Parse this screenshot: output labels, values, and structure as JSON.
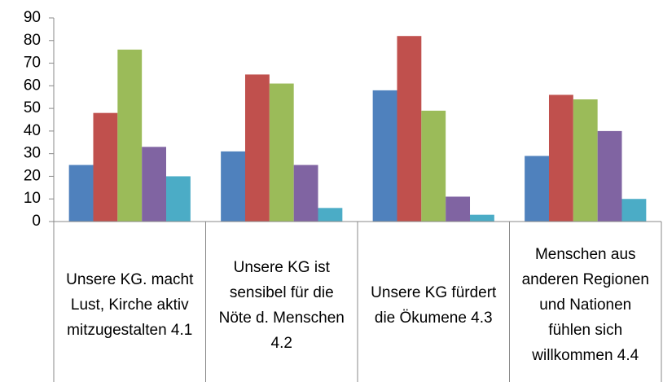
{
  "chart_data": {
    "type": "bar",
    "categories": [
      "Unsere KG. macht Lust, Kirche aktiv mitzugestalten 4.1",
      "Unsere KG ist sensibel für die Nöte d. Menschen 4.2",
      "Unsere KG fürdert die Ökumene 4.3",
      "Menschen aus anderen Regionen und Nationen fühlen sich willkommen 4.4"
    ],
    "series": [
      {
        "color": "#4f81bd",
        "values": [
          25,
          31,
          58,
          29
        ]
      },
      {
        "color": "#c0504d",
        "values": [
          48,
          65,
          82,
          56
        ]
      },
      {
        "color": "#9bbb59",
        "values": [
          76,
          61,
          49,
          54
        ]
      },
      {
        "color": "#8064a2",
        "values": [
          33,
          25,
          11,
          40
        ]
      },
      {
        "color": "#4bacc6",
        "values": [
          20,
          6,
          3,
          10
        ]
      }
    ],
    "ylim": [
      0,
      90
    ],
    "yticks": [
      0,
      10,
      20,
      30,
      40,
      50,
      60,
      70,
      80,
      90
    ],
    "grid": false
  }
}
